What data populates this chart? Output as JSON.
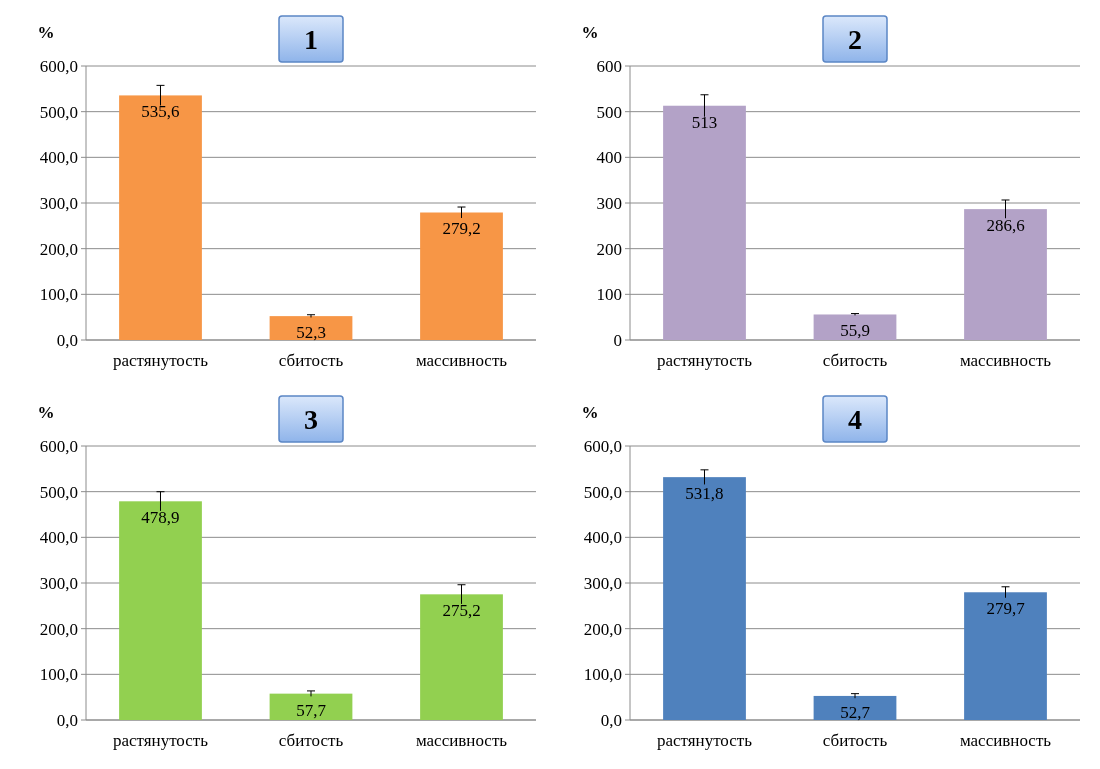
{
  "chart_data": [
    {
      "type": "bar",
      "title": "1",
      "ylabel": "%",
      "categories": [
        "растянутость",
        "сбитость",
        "массивность"
      ],
      "values": [
        535.6,
        52.3,
        279.2
      ],
      "errors": [
        22,
        3,
        12
      ],
      "value_labels": [
        "535,6",
        "52,3",
        "279,2"
      ],
      "color": "#f79646",
      "ylim": [
        0,
        600
      ],
      "yticks": [
        {
          "value": 0,
          "label": "0,0"
        },
        {
          "value": 100,
          "label": "100,0"
        },
        {
          "value": 200,
          "label": "200,0"
        },
        {
          "value": 300,
          "label": "300,0"
        },
        {
          "value": 400,
          "label": "400,0"
        },
        {
          "value": 500,
          "label": "500,0"
        },
        {
          "value": 600,
          "label": "600,0"
        }
      ],
      "grid": "y"
    },
    {
      "type": "bar",
      "title": "2",
      "ylabel": "%",
      "categories": [
        "растянутость",
        "сбитость",
        "массивность"
      ],
      "values": [
        513,
        55.9,
        286.6
      ],
      "errors": [
        24,
        2,
        20
      ],
      "value_labels": [
        "513",
        "55,9",
        "286,6"
      ],
      "color": "#b3a2c7",
      "ylim": [
        0,
        600
      ],
      "yticks": [
        0,
        100,
        200,
        300,
        400,
        500,
        600
      ],
      "grid": "y"
    },
    {
      "type": "bar",
      "title": "3",
      "ylabel": "%",
      "categories": [
        "растянутость",
        "сбитость",
        "массивность"
      ],
      "values": [
        478.9,
        57.7,
        275.2
      ],
      "errors": [
        21,
        6,
        21
      ],
      "value_labels": [
        "478,9",
        "57,7",
        "275,2"
      ],
      "color": "#92d050",
      "ylim": [
        0,
        600
      ],
      "yticks": [
        {
          "value": 0,
          "label": "0,0"
        },
        {
          "value": 100,
          "label": "100,0"
        },
        {
          "value": 200,
          "label": "200,0"
        },
        {
          "value": 300,
          "label": "300,0"
        },
        {
          "value": 400,
          "label": "400,0"
        },
        {
          "value": 500,
          "label": "500,0"
        },
        {
          "value": 600,
          "label": "600,0"
        }
      ],
      "grid": "y"
    },
    {
      "type": "bar",
      "title": "4",
      "ylabel": "%",
      "categories": [
        "растянутость",
        "сбитость",
        "массивность"
      ],
      "values": [
        531.8,
        52.7,
        279.7
      ],
      "errors": [
        16,
        5,
        12
      ],
      "value_labels": [
        "531,8",
        "52,7",
        "279,7"
      ],
      "color": "#4f81bd",
      "ylim": [
        0,
        600
      ],
      "yticks": [
        {
          "value": 0,
          "label": "0,0"
        },
        {
          "value": 100,
          "label": "100,0"
        },
        {
          "value": 200,
          "label": "200,0"
        },
        {
          "value": 300,
          "label": "300,0"
        },
        {
          "value": 400,
          "label": "400,0"
        },
        {
          "value": 500,
          "label": "500,0"
        },
        {
          "value": 600,
          "label": "600,0"
        }
      ],
      "grid": "y"
    }
  ]
}
